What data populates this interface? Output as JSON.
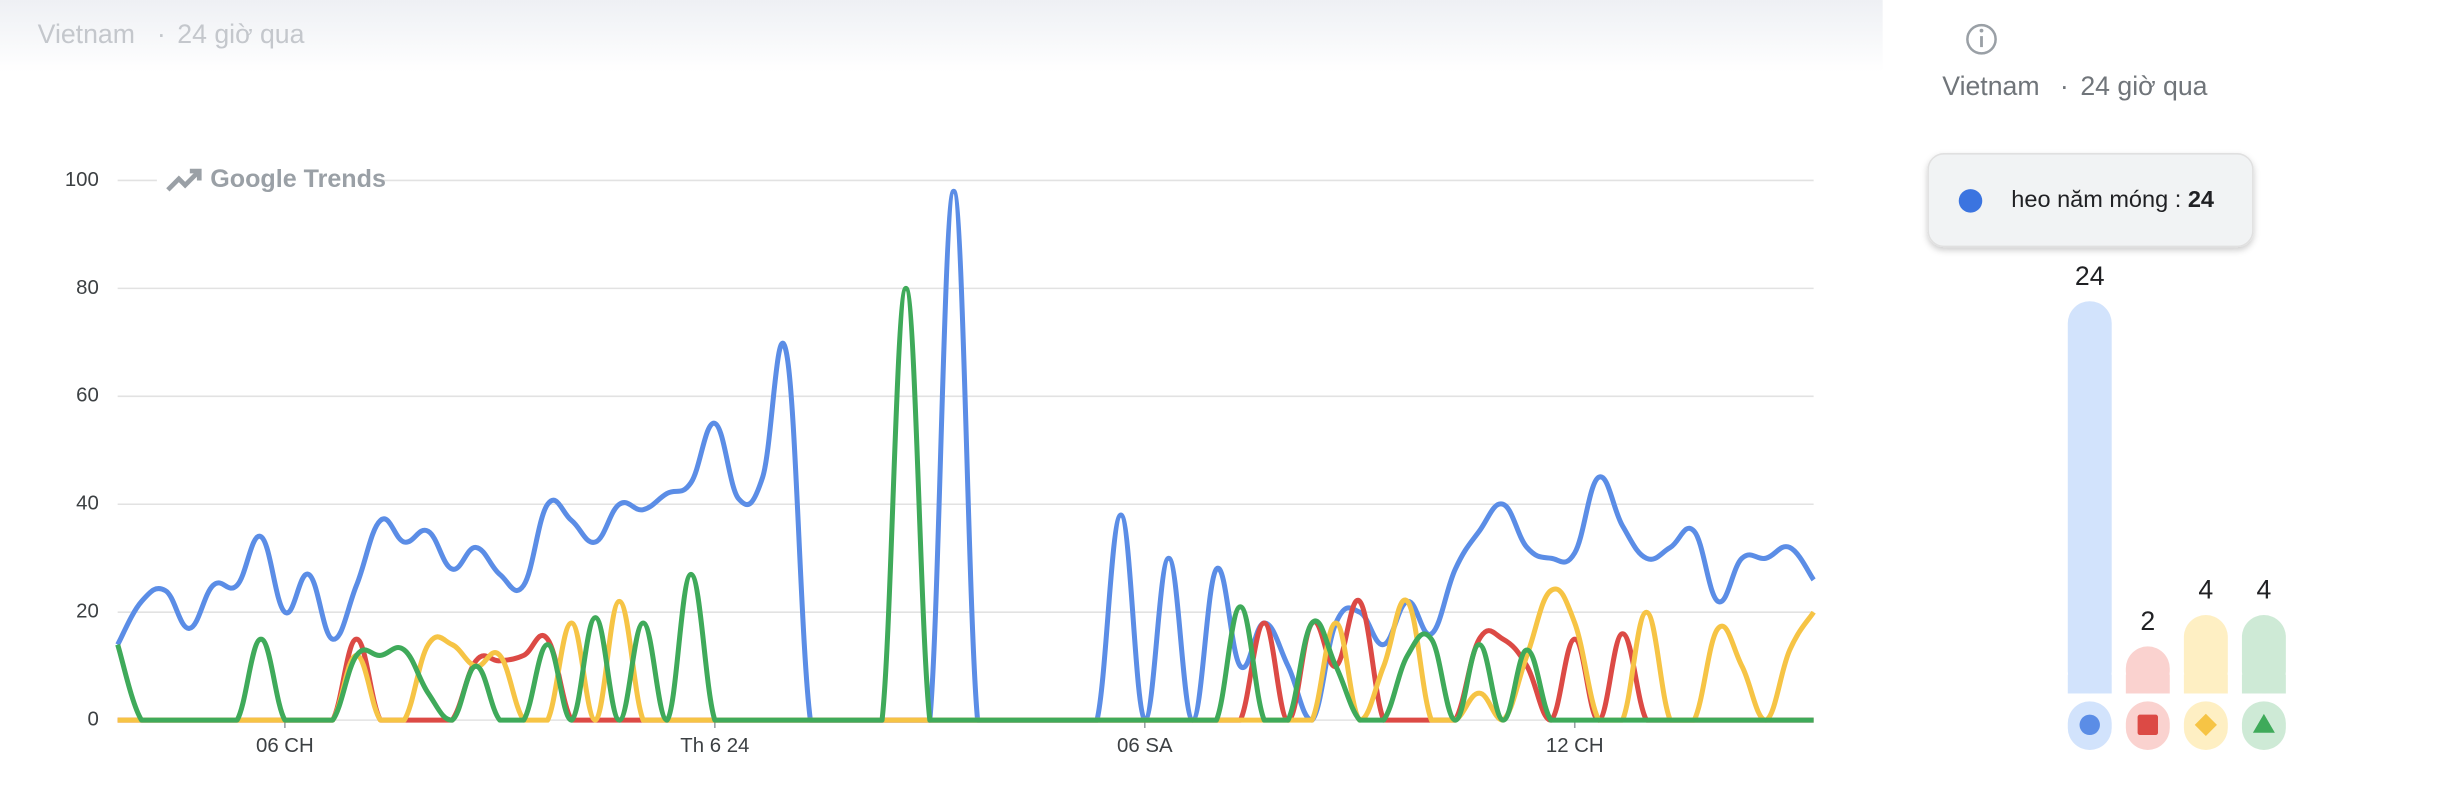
{
  "location": "Vietnam",
  "separator": "·",
  "period": "24 giờ qua",
  "watermark": "Google Trends",
  "tooltip_separator": ":",
  "chart_data": [
    {
      "type": "line",
      "categories": [
        null,
        null,
        null,
        null,
        null,
        null,
        null,
        "06 CH",
        null,
        null,
        null,
        null,
        null,
        null,
        null,
        null,
        null,
        null,
        null,
        null,
        null,
        null,
        null,
        null,
        null,
        "Th 6 24",
        null,
        null,
        null,
        null,
        null,
        null,
        null,
        null,
        null,
        null,
        null,
        null,
        null,
        null,
        null,
        null,
        null,
        "06 SA",
        null,
        null,
        null,
        null,
        null,
        null,
        null,
        null,
        null,
        null,
        null,
        null,
        null,
        null,
        null,
        null,
        null,
        "12 CH",
        null,
        null,
        null,
        null,
        null,
        null,
        null,
        null,
        null,
        null
      ],
      "ylim": [
        0,
        100
      ],
      "yticks": [
        0,
        20,
        40,
        60,
        80,
        100
      ],
      "grid": true,
      "series": [
        {
          "name": "heo năm móng",
          "color": "#5b8de6",
          "values": [
            14,
            22,
            24,
            17,
            25,
            25,
            34,
            20,
            27,
            15,
            25,
            37,
            33,
            35,
            28,
            32,
            27,
            25,
            40,
            37,
            33,
            40,
            39,
            42,
            44,
            55,
            41,
            45,
            68,
            0,
            0,
            0,
            0,
            0,
            0,
            98,
            0,
            0,
            0,
            0,
            0,
            0,
            38,
            0,
            30,
            0,
            28,
            10,
            18,
            10,
            0,
            18,
            20,
            14,
            22,
            16,
            28,
            35,
            40,
            32,
            30,
            31,
            45,
            36,
            30,
            32,
            35,
            22,
            30,
            30,
            32,
            26
          ]
        },
        {
          "color": "#dc4a45",
          "values": [
            0,
            0,
            0,
            0,
            0,
            0,
            0,
            0,
            0,
            0,
            15,
            0,
            0,
            0,
            0,
            11,
            11,
            12,
            15,
            0,
            0,
            0,
            0,
            0,
            0,
            0,
            0,
            0,
            0,
            0,
            0,
            0,
            0,
            0,
            0,
            0,
            0,
            0,
            0,
            0,
            0,
            0,
            0,
            0,
            0,
            0,
            0,
            0,
            18,
            0,
            18,
            10,
            22,
            0,
            0,
            0,
            0,
            15,
            15,
            10,
            0,
            15,
            0,
            16,
            0,
            0,
            0,
            0,
            0,
            0,
            0,
            0
          ]
        },
        {
          "color": "#f6c445",
          "values": [
            0,
            0,
            0,
            0,
            0,
            0,
            0,
            0,
            0,
            0,
            12,
            0,
            0,
            14,
            14,
            10,
            12,
            0,
            0,
            18,
            0,
            22,
            0,
            0,
            0,
            0,
            0,
            0,
            0,
            0,
            0,
            0,
            0,
            0,
            0,
            0,
            0,
            0,
            0,
            0,
            0,
            0,
            0,
            0,
            0,
            0,
            0,
            0,
            0,
            0,
            0,
            18,
            0,
            10,
            22,
            0,
            0,
            5,
            0,
            12,
            24,
            18,
            0,
            0,
            20,
            0,
            0,
            17,
            10,
            0,
            13,
            20
          ]
        },
        {
          "color": "#3faa5a",
          "values": [
            14,
            0,
            0,
            0,
            0,
            0,
            15,
            0,
            0,
            0,
            12,
            12,
            13,
            5,
            0,
            10,
            0,
            0,
            14,
            0,
            19,
            0,
            18,
            0,
            27,
            0,
            0,
            0,
            0,
            0,
            0,
            0,
            0,
            80,
            0,
            0,
            0,
            0,
            0,
            0,
            0,
            0,
            0,
            0,
            0,
            0,
            0,
            21,
            0,
            0,
            18,
            10,
            0,
            0,
            12,
            15,
            0,
            14,
            0,
            13,
            0,
            0,
            0,
            0,
            0,
            0,
            0,
            0,
            0,
            0,
            0,
            0
          ]
        }
      ]
    },
    {
      "type": "bar",
      "values": [
        24,
        2,
        4,
        4
      ],
      "colors": [
        "#d2e3fc",
        "#fad2cf",
        "#feefc3",
        "#ceead6"
      ]
    }
  ]
}
